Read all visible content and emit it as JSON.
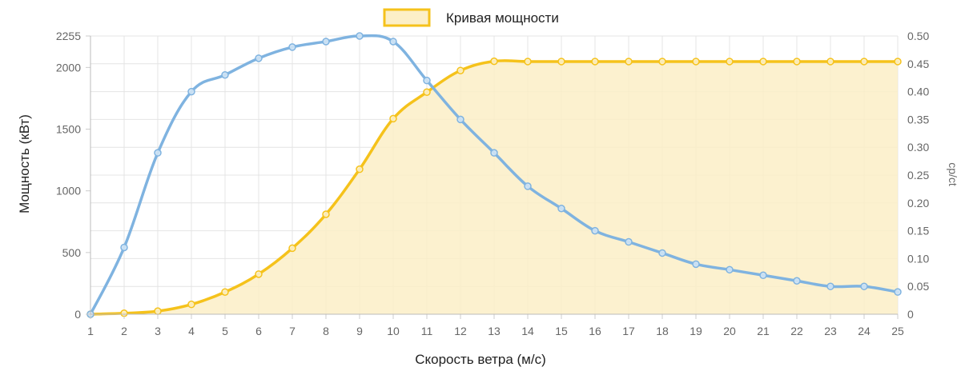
{
  "chart_data": {
    "type": "line",
    "x": [
      1,
      2,
      3,
      4,
      5,
      6,
      7,
      8,
      9,
      10,
      11,
      12,
      13,
      14,
      15,
      16,
      17,
      18,
      19,
      20,
      21,
      22,
      23,
      24,
      25
    ],
    "xlabel": "Скорость ветра (м/с)",
    "ylabel": "Мощность (кВт)",
    "y2label": "cp/ct",
    "ylim": [
      0,
      2255
    ],
    "y2lim": [
      0,
      0.5
    ],
    "yticks": [
      0,
      500,
      1000,
      1500,
      2000,
      2255
    ],
    "y2ticks": [
      0,
      0.05,
      0.1,
      0.15,
      0.2,
      0.25,
      0.3,
      0.35,
      0.4,
      0.45,
      0.5
    ],
    "legend_position": "top-center",
    "grid": true,
    "series": [
      {
        "name": "Кривая мощности",
        "axis": "left",
        "type": "area",
        "color": "#f5c21b",
        "fill": "#fcefc7",
        "values": [
          0,
          8,
          25,
          80,
          180,
          325,
          535,
          810,
          1175,
          1585,
          1800,
          1975,
          2050,
          2048,
          2048,
          2048,
          2048,
          2048,
          2048,
          2048,
          2048,
          2048,
          2048,
          2048,
          2048
        ]
      },
      {
        "axis": "right",
        "type": "line",
        "color": "#7fb3e0",
        "values": [
          0,
          0.12,
          0.29,
          0.4,
          0.43,
          0.46,
          0.48,
          0.49,
          0.5,
          0.49,
          0.42,
          0.35,
          0.29,
          0.23,
          0.19,
          0.15,
          0.13,
          0.11,
          0.09,
          0.08,
          0.07,
          0.06,
          0.05,
          0.05,
          0.04
        ]
      }
    ]
  }
}
